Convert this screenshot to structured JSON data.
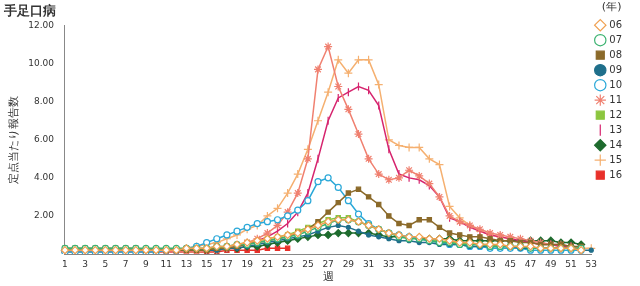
{
  "chart_data": {
    "type": "line",
    "title": "手足口病",
    "x_label": "週",
    "y_label": "定点当たり報告数",
    "legend_title": "(年)",
    "legend": "right",
    "grid": false,
    "categories": [
      "1",
      null,
      "3",
      null,
      "5",
      null,
      "7",
      null,
      "9",
      null,
      "11",
      null,
      "13",
      null,
      "15",
      null,
      "17",
      null,
      "19",
      null,
      "21",
      null,
      "23",
      null,
      "25",
      null,
      "27",
      null,
      "29",
      null,
      "31",
      null,
      "33",
      null,
      "35",
      null,
      "37",
      null,
      "39",
      null,
      "41",
      null,
      "43",
      null,
      "45",
      null,
      "47",
      null,
      "49",
      null,
      "51",
      null,
      "53"
    ],
    "ylim": [
      0,
      12
    ],
    "yticks": [
      {
        "value": 2,
        "label": "2.00"
      },
      {
        "value": 4,
        "label": "4.00"
      },
      {
        "value": 6,
        "label": "6.00"
      },
      {
        "value": 8,
        "label": "8.00"
      },
      {
        "value": 10,
        "label": "10.00"
      },
      {
        "value": 12,
        "label": "12.00"
      }
    ],
    "series": [
      {
        "name": "06",
        "color": "#f0a050",
        "marker": "diamond_open",
        "values": [
          0.2,
          0.2,
          0.2,
          0.2,
          0.2,
          0.2,
          0.2,
          0.2,
          0.2,
          0.2,
          0.2,
          0.2,
          0.3,
          0.3,
          0.3,
          0.4,
          0.4,
          0.5,
          0.6,
          0.7,
          0.8,
          0.9,
          1.0,
          1.1,
          1.3,
          1.5,
          1.7,
          1.8,
          1.8,
          1.7,
          1.5,
          1.3,
          1.1,
          1.0,
          0.9,
          0.9,
          0.8,
          0.8,
          0.7,
          0.6,
          0.6,
          0.5,
          0.5,
          0.5,
          0.4,
          0.4,
          0.4,
          0.3,
          0.3,
          0.3,
          0.3,
          0.2,
          null
        ]
      },
      {
        "name": "07",
        "color": "#3cb371",
        "marker": "circle_open",
        "values": [
          0.3,
          0.3,
          0.3,
          0.3,
          0.3,
          0.3,
          0.3,
          0.3,
          0.3,
          0.3,
          0.3,
          0.3,
          0.3,
          0.3,
          0.3,
          0.4,
          0.4,
          0.5,
          0.5,
          0.6,
          0.7,
          0.8,
          0.9,
          1.0,
          1.2,
          1.4,
          1.6,
          1.8,
          1.8,
          1.7,
          1.5,
          1.3,
          1.1,
          0.9,
          0.8,
          0.8,
          0.7,
          0.6,
          0.6,
          0.5,
          0.5,
          0.5,
          0.4,
          0.4,
          0.4,
          0.4,
          0.3,
          0.3,
          0.3,
          0.3,
          0.3,
          0.3,
          null
        ]
      },
      {
        "name": "08",
        "color": "#8b6a2a",
        "marker": "square",
        "values": [
          0.3,
          0.3,
          0.3,
          0.3,
          0.3,
          0.3,
          0.3,
          0.3,
          0.2,
          0.2,
          0.2,
          0.2,
          0.2,
          0.2,
          0.2,
          0.3,
          0.3,
          0.4,
          0.5,
          0.6,
          0.7,
          0.8,
          0.9,
          1.1,
          1.3,
          1.7,
          2.2,
          2.7,
          3.2,
          3.4,
          3.0,
          2.6,
          2.0,
          1.6,
          1.5,
          1.8,
          1.8,
          1.4,
          1.1,
          1.0,
          0.9,
          0.9,
          0.8,
          0.7,
          0.7,
          0.6,
          0.6,
          0.5,
          0.5,
          0.5,
          0.4,
          0.4,
          null
        ]
      },
      {
        "name": "09",
        "color": "#1f6f8b",
        "marker": "circle",
        "values": [
          0.2,
          0.2,
          0.2,
          0.2,
          0.2,
          0.2,
          0.2,
          0.2,
          0.2,
          0.2,
          0.2,
          0.2,
          0.2,
          0.2,
          0.2,
          0.2,
          0.3,
          0.3,
          0.4,
          0.5,
          0.6,
          0.7,
          0.8,
          0.9,
          1.0,
          1.2,
          1.4,
          1.5,
          1.4,
          1.2,
          1.0,
          0.9,
          0.8,
          0.7,
          0.7,
          0.6,
          0.6,
          0.5,
          0.5,
          0.5,
          0.4,
          0.4,
          0.4,
          0.4,
          0.4,
          0.3,
          0.3,
          0.3,
          0.3,
          0.3,
          0.3,
          0.2,
          0.2
        ]
      },
      {
        "name": "10",
        "color": "#2aa8d8",
        "marker": "circle_open",
        "values": [
          0.1,
          0.1,
          0.1,
          0.1,
          0.1,
          0.1,
          0.1,
          0.1,
          0.1,
          0.1,
          0.2,
          0.2,
          0.3,
          0.4,
          0.6,
          0.8,
          1.0,
          1.2,
          1.4,
          1.6,
          1.7,
          1.8,
          2.0,
          2.3,
          2.8,
          3.8,
          4.0,
          3.5,
          2.8,
          2.1,
          1.6,
          1.3,
          1.1,
          1.0,
          0.9,
          0.8,
          0.7,
          0.6,
          0.5,
          0.5,
          0.4,
          0.4,
          0.3,
          0.3,
          0.3,
          0.3,
          0.2,
          0.2,
          0.2,
          0.2,
          0.2,
          0.2,
          null
        ]
      },
      {
        "name": "11",
        "color": "#f08070",
        "marker": "star",
        "values": [
          0.1,
          0.1,
          0.1,
          0.1,
          0.1,
          0.1,
          0.1,
          0.1,
          0.1,
          0.1,
          0.1,
          0.1,
          0.1,
          0.1,
          0.2,
          0.2,
          0.3,
          0.4,
          0.6,
          0.8,
          1.1,
          1.5,
          2.2,
          3.2,
          5.0,
          9.7,
          10.9,
          8.8,
          7.6,
          6.3,
          5.0,
          4.2,
          3.9,
          4.0,
          4.4,
          4.1,
          3.7,
          3.0,
          2.0,
          1.7,
          1.5,
          1.3,
          1.1,
          1.0,
          0.9,
          0.8,
          0.7,
          0.6,
          0.5,
          0.5,
          0.4,
          0.3,
          null
        ]
      },
      {
        "name": "12",
        "color": "#8cc63f",
        "marker": "square",
        "values": [
          0.2,
          0.2,
          0.2,
          0.2,
          0.2,
          0.2,
          0.2,
          0.2,
          0.2,
          0.2,
          0.2,
          0.2,
          0.2,
          0.2,
          0.3,
          0.3,
          0.4,
          0.5,
          0.6,
          0.7,
          0.8,
          0.9,
          1.0,
          1.2,
          1.4,
          1.6,
          1.8,
          1.9,
          1.9,
          1.7,
          1.5,
          1.3,
          1.1,
          1.0,
          0.9,
          0.8,
          0.7,
          0.7,
          0.6,
          0.6,
          0.5,
          0.5,
          0.5,
          0.4,
          0.4,
          0.4,
          0.3,
          0.3,
          0.3,
          0.3,
          0.3,
          0.3,
          null
        ]
      },
      {
        "name": "13",
        "color": "#d6246e",
        "marker": "dash",
        "values": [
          0.1,
          0.1,
          0.1,
          0.1,
          0.1,
          0.1,
          0.1,
          0.1,
          0.1,
          0.1,
          0.1,
          0.1,
          0.1,
          0.2,
          0.2,
          0.2,
          0.3,
          0.4,
          0.5,
          0.7,
          0.9,
          1.2,
          1.6,
          2.2,
          3.2,
          5.0,
          7.0,
          8.2,
          8.5,
          8.8,
          8.6,
          7.8,
          5.5,
          4.2,
          4.0,
          3.9,
          3.6,
          3.0,
          1.9,
          1.7,
          1.4,
          1.2,
          1.0,
          0.9,
          0.8,
          0.7,
          0.6,
          0.5,
          0.5,
          0.4,
          0.4,
          0.3,
          null
        ]
      },
      {
        "name": "14",
        "color": "#1e6b2e",
        "marker": "diamond",
        "values": [
          0.2,
          0.2,
          0.2,
          0.2,
          0.2,
          0.2,
          0.2,
          0.2,
          0.2,
          0.2,
          0.2,
          0.2,
          0.2,
          0.2,
          0.2,
          0.2,
          0.3,
          0.3,
          0.4,
          0.4,
          0.5,
          0.6,
          0.7,
          0.8,
          0.9,
          1.0,
          1.0,
          1.1,
          1.1,
          1.1,
          1.1,
          1.0,
          0.9,
          0.9,
          0.9,
          0.8,
          0.8,
          0.8,
          0.8,
          0.7,
          0.7,
          0.7,
          0.7,
          0.7,
          0.7,
          0.7,
          0.7,
          0.7,
          0.7,
          0.6,
          0.6,
          0.5,
          null
        ]
      },
      {
        "name": "15",
        "color": "#f5b070",
        "marker": "cross",
        "values": [
          0.1,
          0.1,
          0.1,
          0.1,
          0.1,
          0.1,
          0.1,
          0.1,
          0.1,
          0.1,
          0.2,
          0.2,
          0.3,
          0.4,
          0.5,
          0.6,
          0.8,
          1.0,
          1.3,
          1.5,
          2.0,
          2.4,
          3.2,
          4.2,
          5.5,
          7.0,
          8.5,
          10.2,
          9.5,
          10.2,
          10.2,
          8.9,
          6.0,
          5.7,
          5.6,
          5.6,
          5.0,
          4.7,
          2.5,
          1.9,
          1.5,
          1.2,
          1.0,
          0.9,
          0.8,
          0.7,
          0.6,
          0.5,
          0.5,
          0.4,
          0.4,
          0.3,
          0.3
        ]
      },
      {
        "name": "16",
        "color": "#e8302a",
        "marker": "square",
        "values": [
          0.1,
          0.1,
          0.1,
          0.1,
          0.1,
          0.1,
          0.1,
          0.1,
          0.1,
          0.1,
          0.1,
          0.1,
          0.1,
          0.1,
          0.1,
          0.1,
          0.2,
          0.2,
          0.2,
          0.2,
          0.3,
          0.3,
          0.3,
          null,
          null,
          null,
          null,
          null,
          null,
          null,
          null,
          null,
          null,
          null,
          null,
          null,
          null,
          null,
          null,
          null,
          null,
          null,
          null,
          null,
          null,
          null,
          null,
          null,
          null,
          null,
          null,
          null,
          null
        ]
      }
    ]
  }
}
